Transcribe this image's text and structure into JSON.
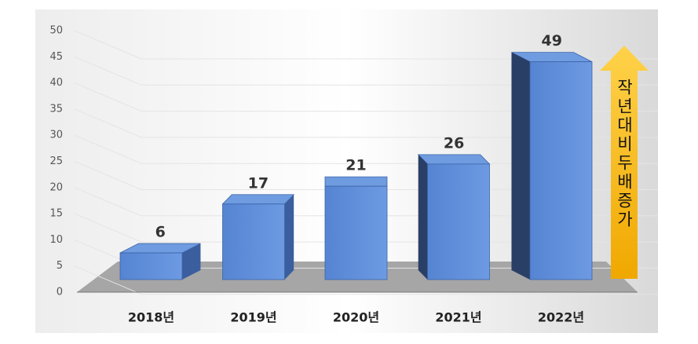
{
  "chart_data": {
    "type": "bar",
    "categories": [
      "2018년",
      "2019년",
      "2020년",
      "2021년",
      "2022년"
    ],
    "values": [
      6,
      17,
      21,
      26,
      49
    ],
    "color": "#5b8ad6",
    "ylim": [
      0,
      50
    ],
    "yticks": [
      0,
      5,
      10,
      15,
      20,
      25,
      30,
      35,
      40,
      45,
      50
    ],
    "grid": true,
    "annotation": "작년대비두배증가"
  }
}
